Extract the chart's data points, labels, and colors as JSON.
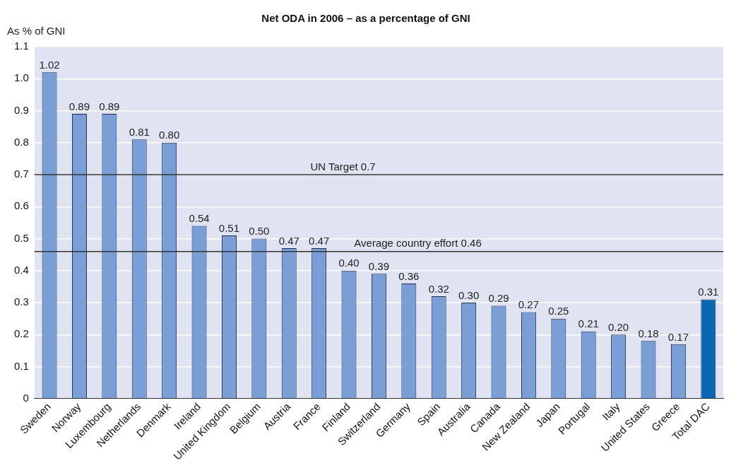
{
  "chart_data": {
    "type": "bar",
    "title": "Net ODA in 2006 – as a percentage of GNI",
    "ylabel": "As % of GNI",
    "categories": [
      "Sweden",
      "Norway",
      "Luxembourg",
      "Netherlands",
      "Denmark",
      "Ireland",
      "United Kingdom",
      "Belgium",
      "Austria",
      "France",
      "Finland",
      "Switzerland",
      "Germany",
      "Spain",
      "Australia",
      "Canada",
      "New Zealand",
      "Japan",
      "Portugal",
      "Italy",
      "United States",
      "Greece",
      "Total DAC"
    ],
    "values": [
      1.02,
      0.89,
      0.89,
      0.81,
      0.8,
      0.54,
      0.51,
      0.5,
      0.47,
      0.47,
      0.4,
      0.39,
      0.36,
      0.32,
      0.3,
      0.29,
      0.27,
      0.25,
      0.21,
      0.2,
      0.18,
      0.17,
      0.31
    ],
    "colors": [
      "#7a9fd6",
      "#7a9fd6",
      "#7a9fd6",
      "#7a9fd6",
      "#7a9fd6",
      "#7a9fd6",
      "#7a9fd6",
      "#7a9fd6",
      "#7a9fd6",
      "#7a9fd6",
      "#7a9fd6",
      "#7a9fd6",
      "#7a9fd6",
      "#7a9fd6",
      "#7a9fd6",
      "#7a9fd6",
      "#7a9fd6",
      "#7a9fd6",
      "#7a9fd6",
      "#7a9fd6",
      "#7a9fd6",
      "#7a9fd6",
      "#0868b0"
    ],
    "value_labels": [
      "1.02",
      "0.89",
      "0.89",
      "0.81",
      "0.80",
      "0.54",
      "0.51",
      "0.50",
      "0.47",
      "0.47",
      "0.40",
      "0.39",
      "0.36",
      "0.32",
      "0.30",
      "0.29",
      "0.27",
      "0.25",
      "0.21",
      "0.20",
      "0.18",
      "0.17",
      "0.31"
    ],
    "ylim": [
      0,
      1.1
    ],
    "yticks": [
      0,
      0.1,
      0.2,
      0.3,
      0.4,
      0.5,
      0.6,
      0.7,
      0.8,
      0.9,
      {
        "value": 1,
        "label": "1.0"
      },
      1.1
    ],
    "ref_lines": [
      {
        "axis": "y",
        "value": 0.7,
        "label": "UN Target 0.7",
        "color": "#333333"
      },
      {
        "axis": "y",
        "value": 0.46,
        "label": "Average country effort 0.46",
        "color": "#333333"
      }
    ],
    "grid": "y",
    "legend": false
  }
}
